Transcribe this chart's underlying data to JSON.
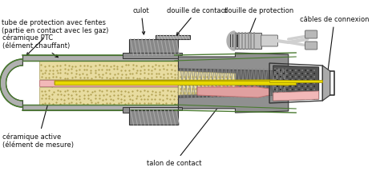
{
  "bg_color": "#ffffff",
  "labels": {
    "tube_protection": "tube de protection avec fentes\n(partie en contact avec les gaz)",
    "ceramique_ptc": "céramique PTC\n(élément chauffant)",
    "ceramique_active": "céramique active\n(élément de mesure)",
    "culot": "culot",
    "douille_contact": "douille de contact",
    "douille_protection": "douille de protection",
    "talon_contact": "talon de contact",
    "cables_connexion": "câbles de connexion"
  },
  "colors": {
    "ceramic_ptc_fill": "#e8dca0",
    "ceramic_active_fill": "#f2b8b8",
    "yellow_wire": "#e8d800",
    "dark_hatch": "#707070",
    "outer_green": "#4a7a30",
    "light_gray": "#c8c8c8",
    "mid_gray": "#989898",
    "dark_gray": "#555555",
    "connector_dark": "#606060",
    "pink_talon": "#e0a0a0",
    "body_outline": "#333333"
  }
}
